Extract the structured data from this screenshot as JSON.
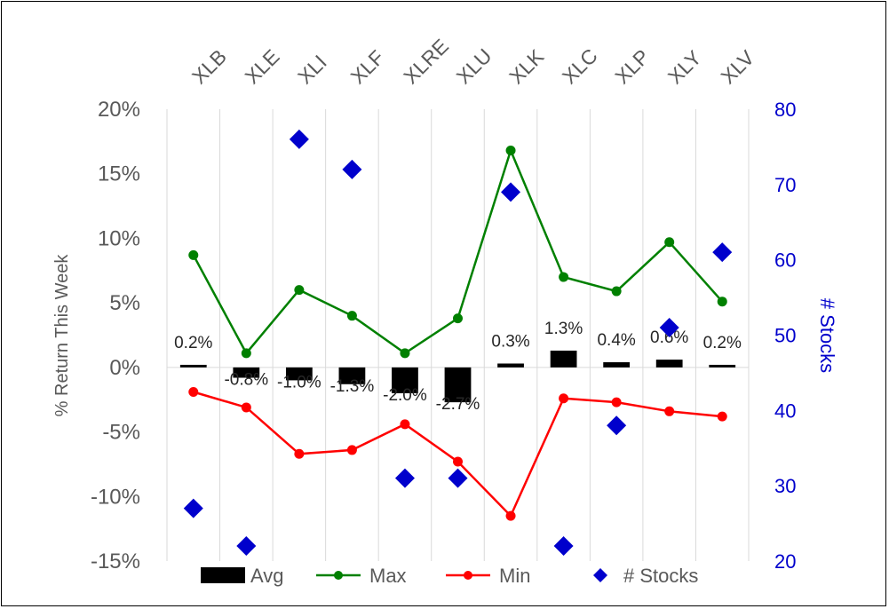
{
  "chart_data": {
    "type": "bar",
    "categories": [
      "XLB",
      "XLE",
      "XLI",
      "XLF",
      "XLRE",
      "XLU",
      "XLK",
      "XLC",
      "XLP",
      "XLY",
      "XLV"
    ],
    "series": [
      {
        "name": "Avg",
        "kind": "bar",
        "axis": "left",
        "color": "#000000",
        "values": [
          0.2,
          -0.8,
          -1.0,
          -1.3,
          -2.0,
          -2.7,
          0.3,
          1.3,
          0.4,
          0.6,
          0.2
        ],
        "data_labels": [
          "0.2%",
          "-0.8%",
          "-1.0%",
          "-1.3%",
          "-2.0%",
          "-2.7%",
          "0.3%",
          "1.3%",
          "0.4%",
          "0.6%",
          "0.2%"
        ]
      },
      {
        "name": "Max",
        "kind": "line",
        "axis": "left",
        "color": "#008000",
        "values": [
          8.7,
          1.1,
          6.0,
          4.0,
          1.1,
          3.8,
          16.8,
          7.0,
          5.9,
          9.7,
          5.1
        ]
      },
      {
        "name": "Min",
        "kind": "line",
        "axis": "left",
        "color": "#ff0000",
        "values": [
          -1.9,
          -3.1,
          -6.7,
          -6.4,
          -4.4,
          -7.3,
          -11.5,
          -2.4,
          -2.7,
          -3.4,
          -3.8
        ]
      },
      {
        "name": "# Stocks",
        "kind": "scatter",
        "axis": "right",
        "color": "#0000cc",
        "values": [
          27,
          22,
          76,
          72,
          31,
          31,
          69,
          22,
          38,
          51,
          61
        ]
      }
    ],
    "ylabel": "% Return This Week",
    "y2label": "# Stocks",
    "ylim": [
      -15,
      20
    ],
    "y2lim": [
      20,
      80
    ],
    "yticks": [
      "20%",
      "15%",
      "10%",
      "5%",
      "0%",
      "-5%",
      "-10%",
      "-15%"
    ],
    "y2ticks": [
      "80",
      "70",
      "60",
      "50",
      "40",
      "30",
      "20"
    ],
    "grid": "vertical",
    "legend_position": "bottom",
    "x_axis_position": "top",
    "colors": {
      "y2_axis_text": "#0000cc",
      "axis_text": "#595959",
      "grid": "#d9d9d9"
    }
  }
}
